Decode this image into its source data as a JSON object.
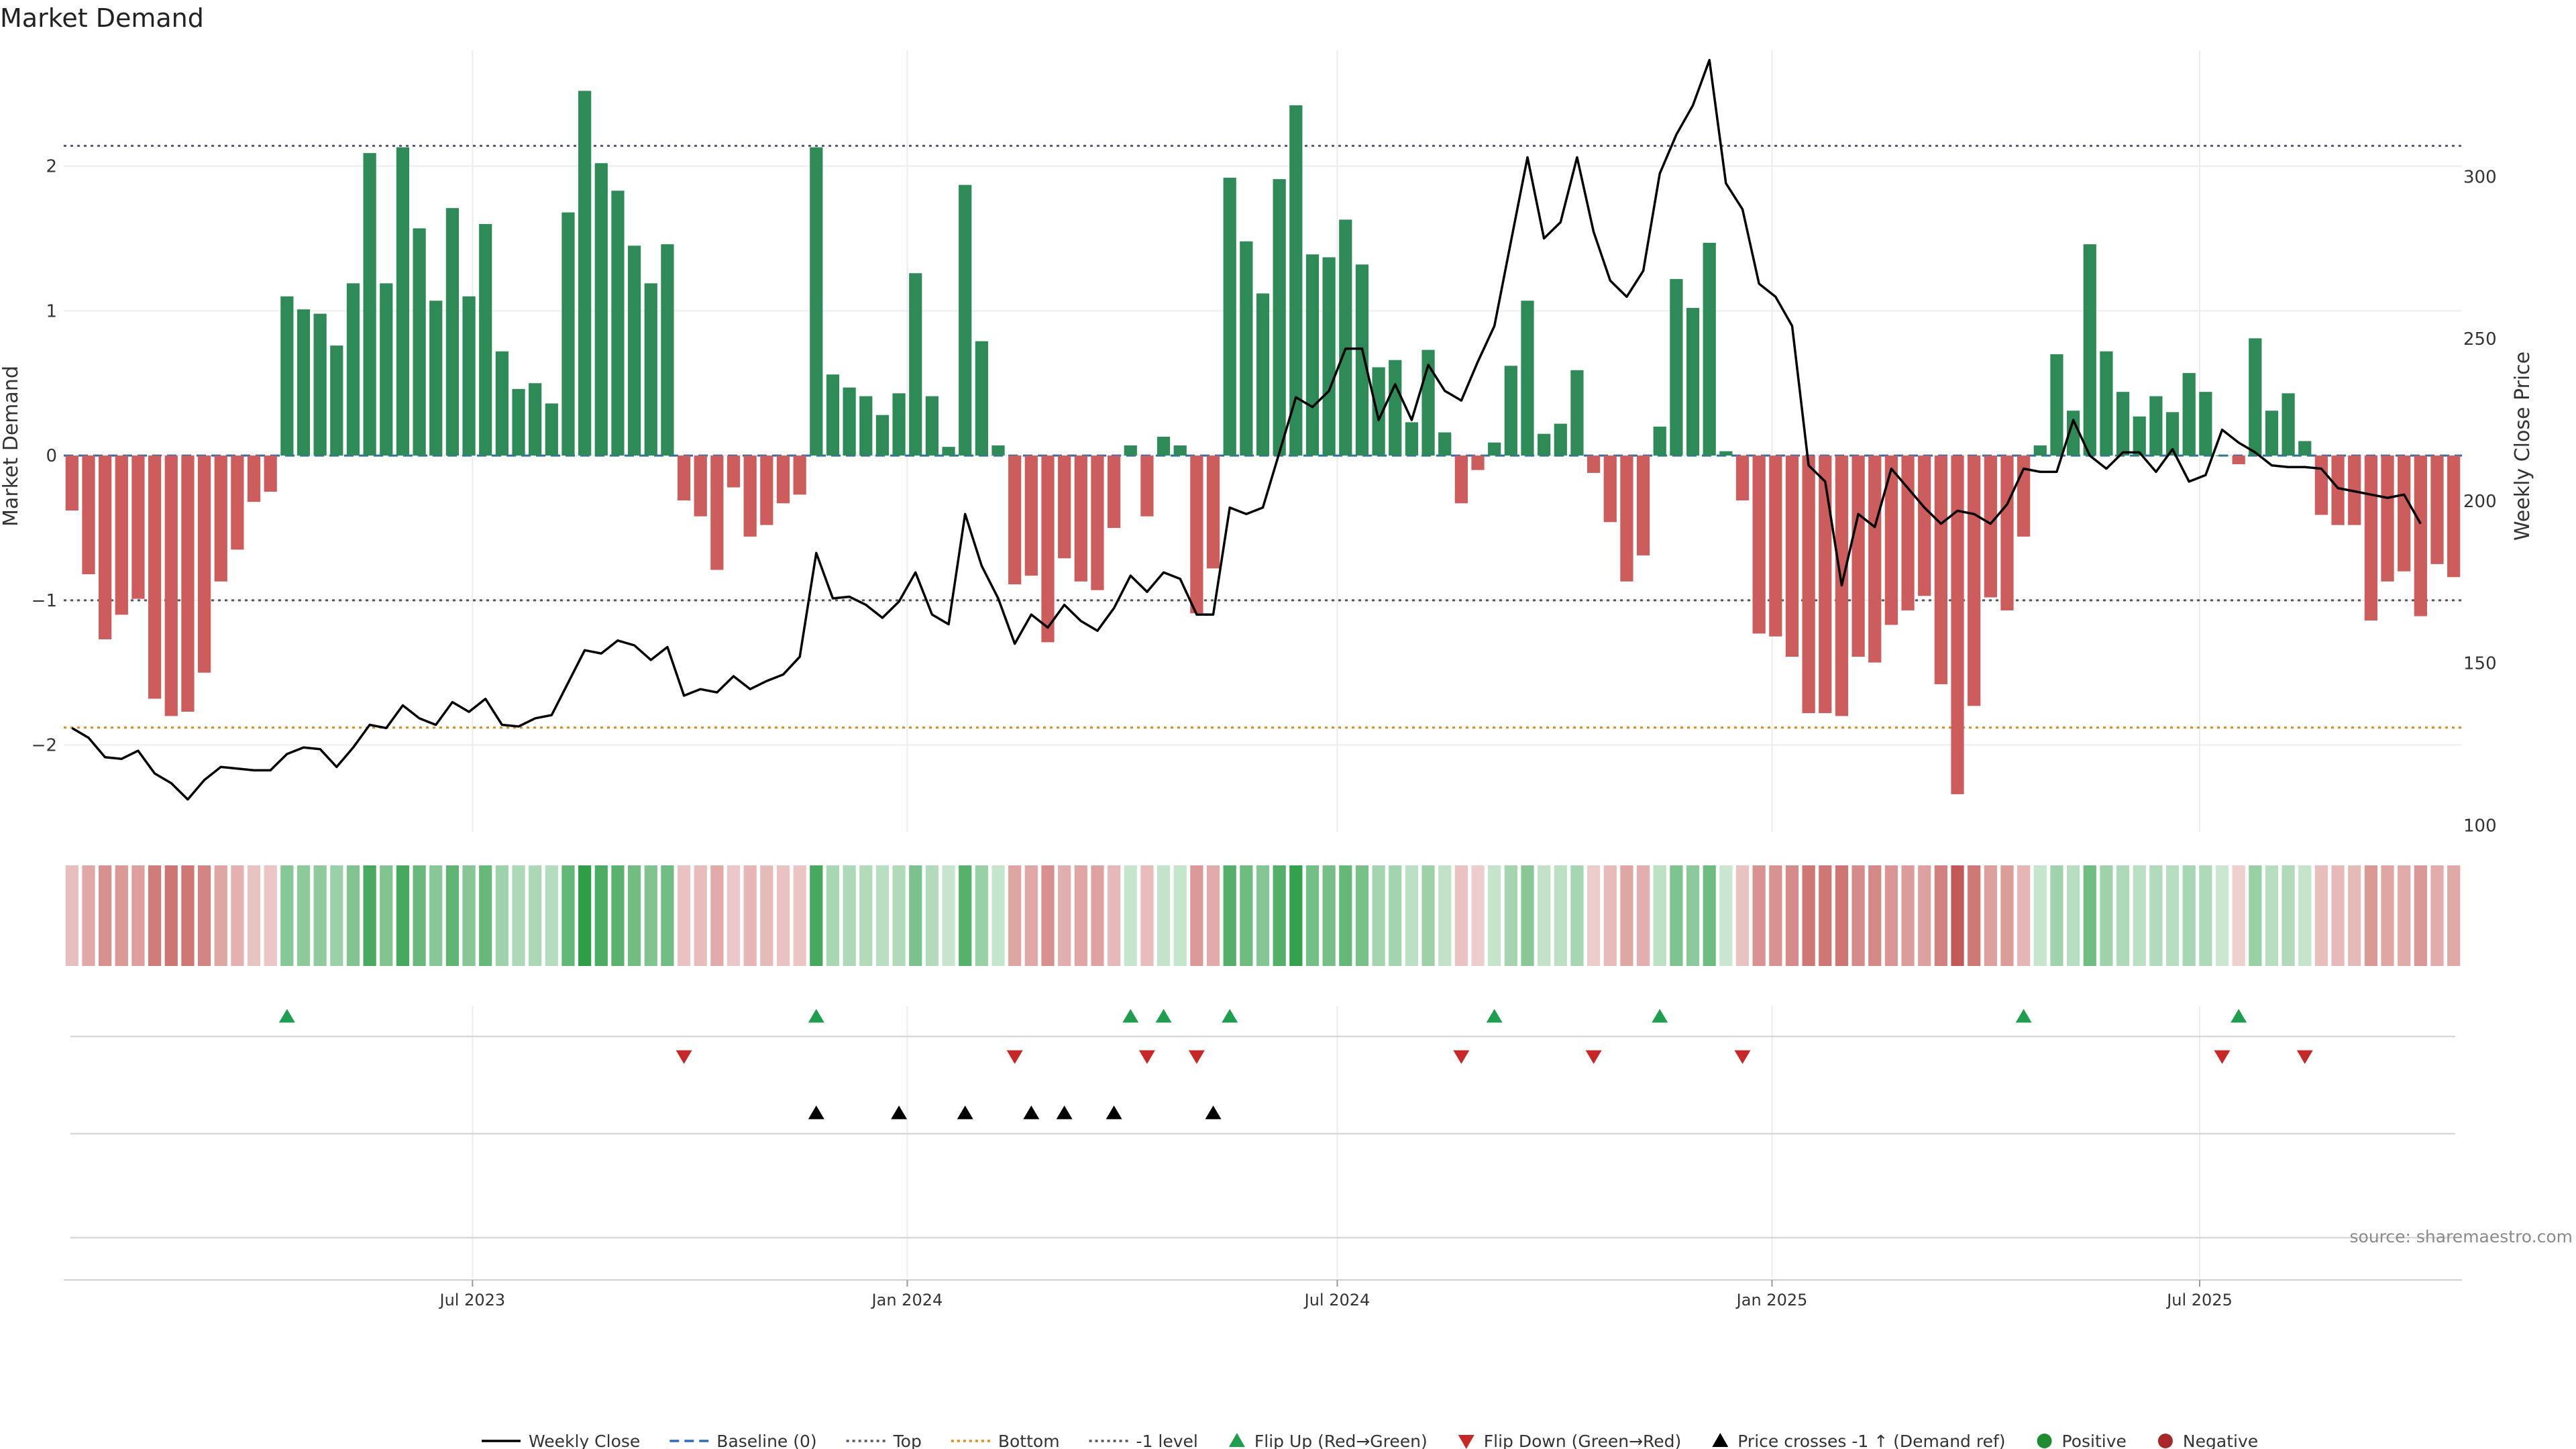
{
  "chart_data": {
    "type": "bar",
    "title": "Market Demand",
    "ylabel_left": "Market Demand",
    "ylabel_right": "Weekly Close Price",
    "ylim_left": [
      -2.6,
      2.8
    ],
    "ylim_right": [
      98,
      339
    ],
    "yticks_left": [
      -2,
      -1,
      0,
      1,
      2
    ],
    "yticks_left_labels": [
      "−2",
      "−1",
      "0",
      "1",
      "2"
    ],
    "yticks_right": [
      100,
      150,
      200,
      250,
      300
    ],
    "x_start": "2023-01-09",
    "x_end": "2025-10-20",
    "x_tick_dates": [
      "2023-07-01",
      "2024-01-01",
      "2024-07-01",
      "2025-01-01",
      "2025-07-01"
    ],
    "x_tick_labels": [
      "Jul 2023",
      "Jan 2024",
      "Jul 2024",
      "Jan 2025",
      "Jul 2025"
    ],
    "reference_lines": {
      "top": 2.14,
      "bottom": -1.88,
      "minus_one": -1.0,
      "baseline": 0
    },
    "grid": true,
    "legend_position": "bottom-center",
    "series": [
      {
        "name": "Market Demand",
        "kind": "bar",
        "values": [
          -0.38,
          -0.82,
          -1.27,
          -1.1,
          -0.99,
          -1.68,
          -1.8,
          -1.77,
          -1.5,
          -0.87,
          -0.65,
          -0.32,
          -0.25,
          1.1,
          1.01,
          0.98,
          0.76,
          1.19,
          2.09,
          1.19,
          2.13,
          1.57,
          1.07,
          1.71,
          1.1,
          1.6,
          0.72,
          0.46,
          0.5,
          0.36,
          1.68,
          2.52,
          2.02,
          1.83,
          1.45,
          1.19,
          1.46,
          -0.31,
          -0.42,
          -0.79,
          -0.22,
          -0.56,
          -0.48,
          -0.33,
          -0.27,
          2.13,
          0.56,
          0.47,
          0.41,
          0.28,
          0.43,
          1.26,
          0.41,
          0.06,
          1.87,
          0.79,
          0.07,
          -0.89,
          -0.83,
          -1.29,
          -0.71,
          -0.87,
          -0.93,
          -0.5,
          0.07,
          -0.42,
          0.13,
          0.07,
          -1.09,
          -0.78,
          1.92,
          1.48,
          1.12,
          1.91,
          2.42,
          1.39,
          1.37,
          1.63,
          1.32,
          0.61,
          0.66,
          0.23,
          0.73,
          0.16,
          -0.33,
          -0.1,
          0.09,
          0.62,
          1.07,
          0.15,
          0.22,
          0.59,
          -0.12,
          -0.46,
          -0.87,
          -0.69,
          0.2,
          1.22,
          1.02,
          1.47,
          0.03,
          -0.31,
          -1.23,
          -1.25,
          -1.39,
          -1.78,
          -1.78,
          -1.8,
          -1.39,
          -1.43,
          -1.17,
          -1.07,
          -0.97,
          -1.58,
          -2.34,
          -1.73,
          -0.98,
          -1.07,
          -0.56,
          0.07,
          0.7,
          0.31,
          1.46,
          0.72,
          0.44,
          0.27,
          0.41,
          0.3,
          0.57,
          0.44,
          0.0,
          -0.06,
          0.81,
          0.31,
          0.43,
          0.1,
          -0.41,
          -0.48,
          -0.48,
          -1.14,
          -0.87,
          -0.8,
          -1.11,
          -0.75,
          -0.84
        ]
      },
      {
        "name": "Weekly Close",
        "kind": "line",
        "values": [
          130.0,
          127.0,
          121.0,
          120.5,
          123.0,
          116.0,
          113.0,
          108.0,
          114.0,
          118.0,
          117.5,
          117.0,
          117.0,
          122.0,
          124.0,
          123.5,
          118.0,
          124.0,
          131.0,
          130.0,
          137.0,
          133.0,
          131.0,
          138.0,
          135.0,
          139.0,
          131.0,
          130.5,
          133.0,
          134.0,
          144.0,
          154.0,
          153.0,
          157.0,
          155.5,
          151.0,
          155.0,
          140.0,
          142.0,
          141.0,
          146.0,
          142.0,
          144.5,
          146.5,
          152.0,
          184.0,
          170.0,
          170.5,
          168.0,
          164.0,
          169.0,
          178.0,
          165.0,
          162.0,
          196.0,
          180.0,
          170.0,
          156.0,
          165.0,
          161.0,
          168.0,
          163.0,
          160.0,
          167.0,
          177.0,
          172.0,
          178.0,
          176.0,
          165.0,
          165.0,
          198.0,
          196.0,
          198.0,
          215.0,
          232.0,
          229.0,
          234.0,
          247.0,
          247.0,
          225.0,
          236.0,
          225.0,
          242.0,
          234.0,
          231.0,
          243.0,
          254.0,
          280.0,
          306.0,
          281.0,
          286.0,
          306.0,
          283.0,
          268.0,
          263.0,
          271.0,
          301.0,
          313.0,
          322.0,
          336.0,
          298.0,
          290.0,
          267.0,
          263.0,
          254.0,
          211.0,
          206.0,
          174.0,
          196.0,
          192.0,
          210.0,
          204.0,
          198.0,
          193.0,
          197.0,
          196.0,
          193.0,
          199.0,
          210.0,
          209.0,
          209.0,
          225.0,
          214.0,
          210.0,
          215.0,
          215.0,
          209.0,
          216.0,
          206.0,
          208.0,
          222.0,
          218.0,
          215.0,
          211.0,
          210.5,
          210.5,
          210.0,
          204.0,
          203.0,
          202.0,
          201.0,
          202.0,
          193.0
        ]
      }
    ],
    "flip_up_indices": [
      13,
      45,
      64,
      66,
      70,
      86,
      96,
      118,
      131
    ],
    "flip_down_indices": [
      37,
      57,
      65,
      68,
      84,
      92,
      101,
      130,
      135
    ],
    "price_cross_indices": [
      45,
      50,
      54,
      58,
      60,
      63,
      69
    ],
    "legend": [
      {
        "label": "Weekly Close",
        "marker": "line-solid",
        "color": "#000000"
      },
      {
        "label": "Baseline (0)",
        "marker": "line-dashed",
        "color": "#2e6bb0"
      },
      {
        "label": "Top",
        "marker": "line-dotted",
        "color": "#555577"
      },
      {
        "label": "Bottom",
        "marker": "line-dotted",
        "color": "#e08a1e"
      },
      {
        "label": "-1 level",
        "marker": "line-dotted",
        "color": "#555555"
      },
      {
        "label": "Flip Up (Red→Green)",
        "marker": "triangle-up",
        "color": "#1f9e50"
      },
      {
        "label": "Flip Down (Green→Red)",
        "marker": "triangle-down",
        "color": "#c62828"
      },
      {
        "label": "Price crosses -1 ↑ (Demand ref)",
        "marker": "triangle-up",
        "color": "#000000"
      },
      {
        "label": "Positive",
        "marker": "circle",
        "color": "#1e8c2e"
      },
      {
        "label": "Negative",
        "marker": "circle",
        "color": "#a8282a"
      }
    ],
    "source": "source: sharemaestro.com",
    "colors": {
      "positive_bar": "#2e8b57",
      "negative_bar": "#cd5c5c",
      "flip_up": "#1f9e50",
      "flip_down": "#c62828",
      "price_cross": "#000000",
      "price_line": "#000000",
      "top_line": "#555577",
      "bottom_line": "#e08a1e",
      "minus_one_line": "#555555",
      "baseline": "#2e6bb0"
    }
  }
}
